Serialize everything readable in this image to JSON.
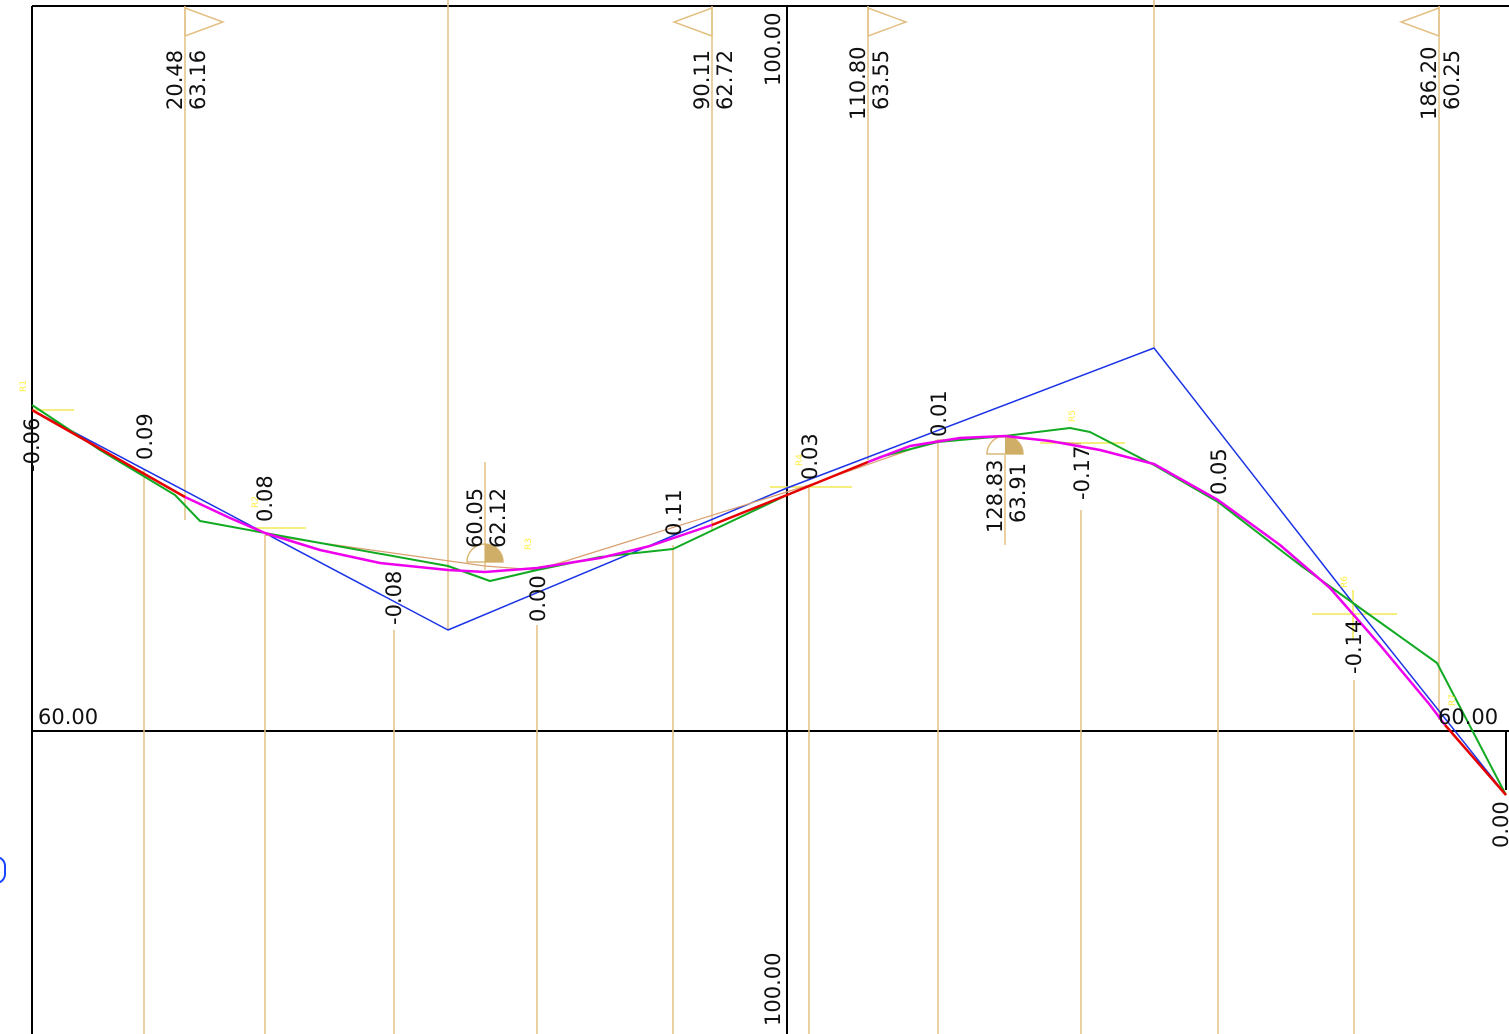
{
  "colors": {
    "frame": "#000000",
    "stations": "#e3c084",
    "design_line": "#1a33e6",
    "measured_line": "#11aa22",
    "smoothed_curve": "#ee00ee",
    "red_segment": "#e60000",
    "tan_line": "#d9a070",
    "markers": "#f2ea55",
    "accent": "#1a44ff"
  },
  "axis": {
    "left_level_label": "60.00",
    "right_level_label": "60.00",
    "center_top_label": "100.00",
    "center_bottom_label": "100.00",
    "right_edge_label": "0.00"
  },
  "top_markers": [
    {
      "station": "20.48",
      "elevation": "63.16"
    },
    {
      "station": "90.11",
      "elevation": "62.72"
    },
    {
      "station": "110.80",
      "elevation": "63.55"
    },
    {
      "station": "186.20",
      "elevation": "60.25"
    }
  ],
  "curve_points": [
    {
      "station": "60.05",
      "elevation": "62.12"
    },
    {
      "station": "128.83",
      "elevation": "63.91"
    }
  ],
  "deviation_labels": [
    "-0.06",
    "0.09",
    "0.08",
    "-0.08",
    "0.00",
    "0.11",
    "0.03",
    "0.01",
    "-0.17",
    "0.05",
    "-0.14"
  ],
  "tiny_tags": [
    "R1",
    "R2",
    "R3",
    "R4",
    "R5",
    "R6",
    "R7"
  ]
}
